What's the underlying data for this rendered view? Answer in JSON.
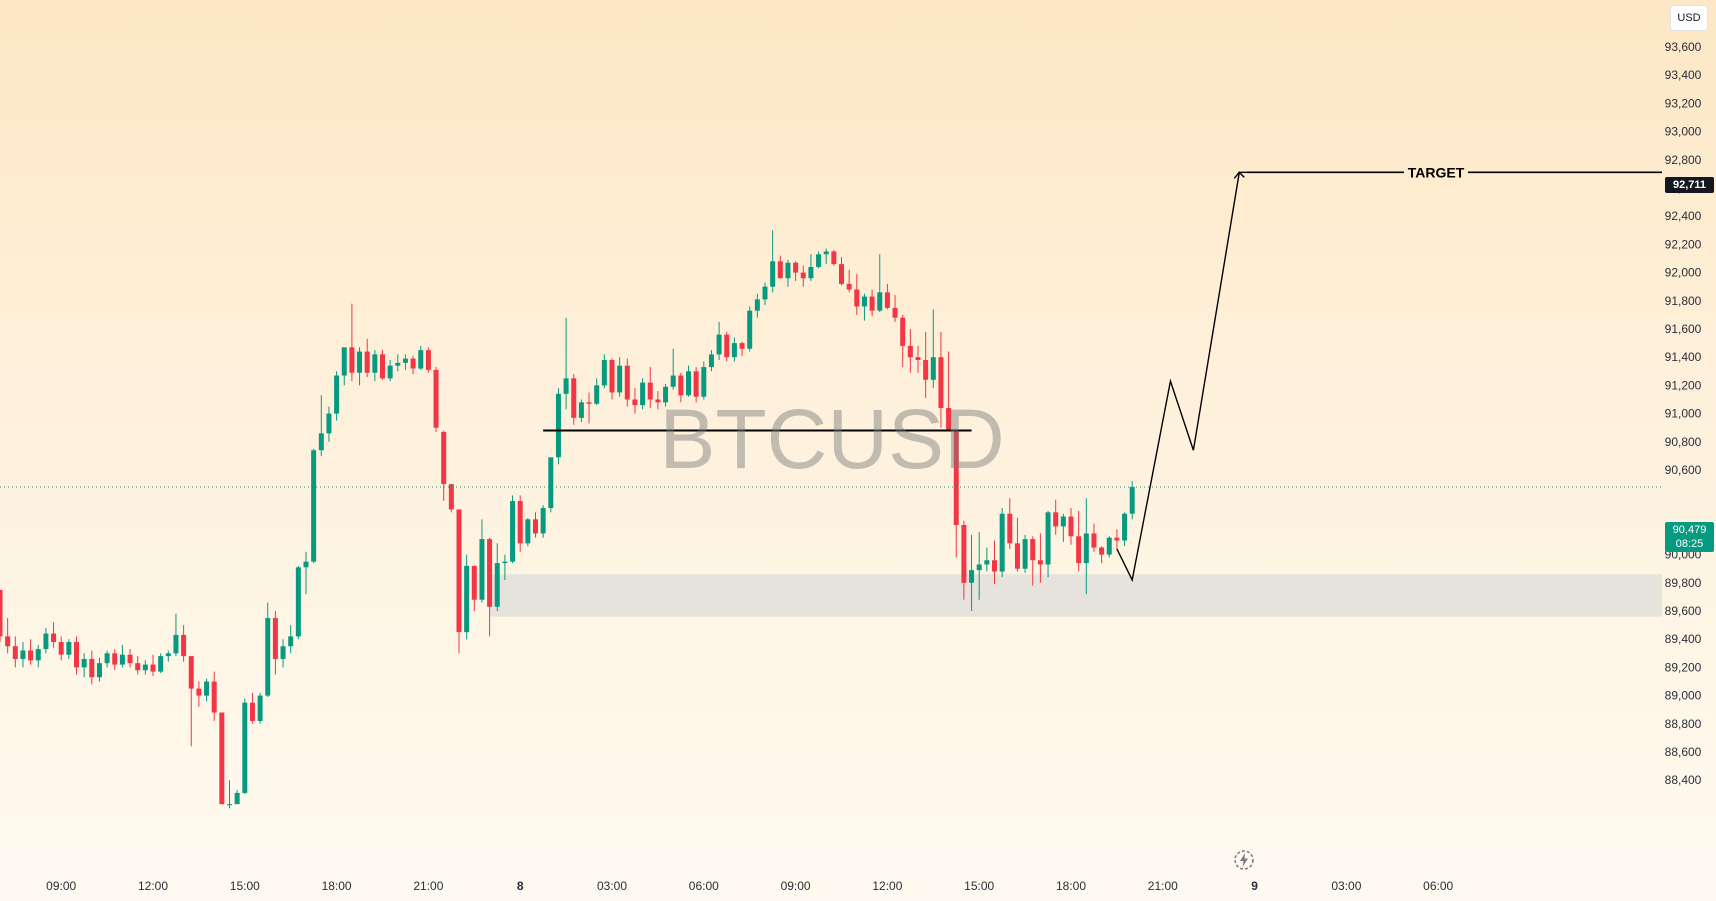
{
  "currency_label": "USD",
  "watermark": "BTCUSD",
  "target_label": "TARGET",
  "target_price_tag": "92,711",
  "current_price_tag": {
    "price": "90,479",
    "countdown": "08:25"
  },
  "icons": {
    "replay": "replay-lightning-icon"
  },
  "colors": {
    "up": "#089981",
    "down": "#f23645",
    "zone": "#e3e0da",
    "target_line": "#000000"
  },
  "chart_data": {
    "type": "candlestick",
    "symbol": "BTCUSD",
    "ylim": [
      88300,
      93700
    ],
    "y_ticks": [
      {
        "value": 93600,
        "label": "93,600"
      },
      {
        "value": 93400,
        "label": "93,400"
      },
      {
        "value": 93200,
        "label": "93,200"
      },
      {
        "value": 93000,
        "label": "93,000"
      },
      {
        "value": 92800,
        "label": "92,800"
      },
      {
        "value": 92600,
        "label": "92,600"
      },
      {
        "value": 92400,
        "label": "92,400"
      },
      {
        "value": 92200,
        "label": "92,200"
      },
      {
        "value": 92000,
        "label": "92,000"
      },
      {
        "value": 91800,
        "label": "91,800"
      },
      {
        "value": 91600,
        "label": "91,600"
      },
      {
        "value": 91400,
        "label": "91,400"
      },
      {
        "value": 91200,
        "label": "91,200"
      },
      {
        "value": 91000,
        "label": "91,000"
      },
      {
        "value": 90800,
        "label": "90,800"
      },
      {
        "value": 90600,
        "label": "90,600"
      },
      {
        "value": 90200,
        "label": "90,200"
      },
      {
        "value": 90000,
        "label": "90,000"
      },
      {
        "value": 89800,
        "label": "89,800"
      },
      {
        "value": 89600,
        "label": "89,600"
      },
      {
        "value": 89400,
        "label": "89,400"
      },
      {
        "value": 89200,
        "label": "89,200"
      },
      {
        "value": 89000,
        "label": "89,000"
      },
      {
        "value": 88800,
        "label": "88,800"
      },
      {
        "value": 88600,
        "label": "88,600"
      },
      {
        "value": 88400,
        "label": "88,400"
      }
    ],
    "x_ticks": [
      {
        "index": 8,
        "label": "09:00",
        "bold": false
      },
      {
        "index": 20,
        "label": "12:00",
        "bold": false
      },
      {
        "index": 32,
        "label": "15:00",
        "bold": false
      },
      {
        "index": 44,
        "label": "18:00",
        "bold": false
      },
      {
        "index": 56,
        "label": "21:00",
        "bold": false
      },
      {
        "index": 68,
        "label": "8",
        "bold": true
      },
      {
        "index": 80,
        "label": "03:00",
        "bold": false
      },
      {
        "index": 92,
        "label": "06:00",
        "bold": false
      },
      {
        "index": 104,
        "label": "09:00",
        "bold": false
      },
      {
        "index": 116,
        "label": "12:00",
        "bold": false
      },
      {
        "index": 128,
        "label": "15:00",
        "bold": false
      },
      {
        "index": 140,
        "label": "18:00",
        "bold": false
      },
      {
        "index": 152,
        "label": "21:00",
        "bold": false
      },
      {
        "index": 164,
        "label": "9",
        "bold": true
      },
      {
        "index": 176,
        "label": "03:00",
        "bold": false
      },
      {
        "index": 188,
        "label": "06:00",
        "bold": false
      }
    ],
    "start_index": 0,
    "candles": [
      [
        89750,
        89750,
        89380,
        89420
      ],
      [
        89420,
        89550,
        89300,
        89350
      ],
      [
        89350,
        89420,
        89200,
        89260
      ],
      [
        89260,
        89380,
        89200,
        89320
      ],
      [
        89320,
        89400,
        89220,
        89250
      ],
      [
        89250,
        89360,
        89200,
        89330
      ],
      [
        89330,
        89480,
        89300,
        89440
      ],
      [
        89440,
        89520,
        89340,
        89380
      ],
      [
        89380,
        89420,
        89250,
        89290
      ],
      [
        89290,
        89400,
        89260,
        89380
      ],
      [
        89380,
        89420,
        89150,
        89200
      ],
      [
        89200,
        89300,
        89130,
        89260
      ],
      [
        89260,
        89320,
        89080,
        89130
      ],
      [
        89130,
        89270,
        89100,
        89230
      ],
      [
        89230,
        89320,
        89200,
        89300
      ],
      [
        89300,
        89330,
        89180,
        89220
      ],
      [
        89220,
        89360,
        89200,
        89290
      ],
      [
        89290,
        89330,
        89200,
        89230
      ],
      [
        89230,
        89280,
        89150,
        89180
      ],
      [
        89180,
        89250,
        89150,
        89220
      ],
      [
        89220,
        89290,
        89140,
        89170
      ],
      [
        89170,
        89300,
        89160,
        89280
      ],
      [
        89280,
        89320,
        89240,
        89300
      ],
      [
        89300,
        89580,
        89280,
        89430
      ],
      [
        89430,
        89500,
        89240,
        89280
      ],
      [
        89280,
        89280,
        88640,
        89050
      ],
      [
        89050,
        89100,
        88920,
        89000
      ],
      [
        89000,
        89120,
        88960,
        89100
      ],
      [
        89100,
        89170,
        88820,
        88880
      ],
      [
        88880,
        88880,
        88230,
        88230
      ],
      [
        88230,
        88400,
        88200,
        88230
      ],
      [
        88230,
        88330,
        88230,
        88310
      ],
      [
        88310,
        88980,
        88300,
        88950
      ],
      [
        88950,
        89020,
        88800,
        88820
      ],
      [
        88820,
        89020,
        88800,
        89000
      ],
      [
        89000,
        89660,
        88990,
        89550
      ],
      [
        89550,
        89600,
        89150,
        89260
      ],
      [
        89260,
        89400,
        89200,
        89350
      ],
      [
        89350,
        89500,
        89300,
        89420
      ],
      [
        89420,
        89920,
        89400,
        89910
      ],
      [
        89910,
        90020,
        89720,
        89950
      ],
      [
        89950,
        90750,
        89940,
        90740
      ],
      [
        90740,
        91130,
        90700,
        90860
      ],
      [
        90860,
        91050,
        90800,
        91000
      ],
      [
        91000,
        91300,
        90950,
        91270
      ],
      [
        91270,
        91460,
        91200,
        91470
      ],
      [
        91470,
        91780,
        91230,
        91290
      ],
      [
        91290,
        91470,
        91200,
        91440
      ],
      [
        91440,
        91530,
        91260,
        91290
      ],
      [
        91290,
        91450,
        91230,
        91420
      ],
      [
        91420,
        91450,
        91240,
        91250
      ],
      [
        91250,
        91380,
        91230,
        91340
      ],
      [
        91340,
        91420,
        91300,
        91360
      ],
      [
        91360,
        91420,
        91310,
        91390
      ],
      [
        91390,
        91410,
        91280,
        91320
      ],
      [
        91320,
        91480,
        91310,
        91450
      ],
      [
        91450,
        91470,
        91290,
        91310
      ],
      [
        91310,
        91330,
        90870,
        90900
      ],
      [
        90870,
        90880,
        90380,
        90500
      ],
      [
        90500,
        90500,
        90300,
        90320
      ],
      [
        90320,
        90320,
        89300,
        89450
      ],
      [
        89450,
        90000,
        89400,
        89920
      ],
      [
        89920,
        89920,
        89600,
        89680
      ],
      [
        89680,
        90250,
        89660,
        90110
      ],
      [
        90110,
        90120,
        89420,
        89630
      ],
      [
        89630,
        90080,
        89600,
        89940
      ],
      [
        89940,
        90000,
        89820,
        89950
      ],
      [
        89950,
        90420,
        89940,
        90380
      ],
      [
        90380,
        90420,
        90020,
        90080
      ],
      [
        90080,
        90260,
        90060,
        90250
      ],
      [
        90250,
        90300,
        90120,
        90150
      ],
      [
        90150,
        90350,
        90120,
        90330
      ],
      [
        90330,
        90680,
        90300,
        90690
      ],
      [
        90690,
        91180,
        90640,
        91140
      ],
      [
        91140,
        91680,
        91030,
        91250
      ],
      [
        91250,
        91280,
        90920,
        90970
      ],
      [
        90970,
        91100,
        90940,
        91080
      ],
      [
        91080,
        91150,
        90930,
        91070
      ],
      [
        91070,
        91250,
        91060,
        91200
      ],
      [
        91200,
        91420,
        91180,
        91380
      ],
      [
        91380,
        91390,
        91100,
        91150
      ],
      [
        91150,
        91400,
        91120,
        91340
      ],
      [
        91340,
        91390,
        91050,
        91100
      ],
      [
        91100,
        91180,
        91000,
        91060
      ],
      [
        91060,
        91250,
        91030,
        91220
      ],
      [
        91220,
        91330,
        91040,
        91100
      ],
      [
        91100,
        91160,
        91030,
        91080
      ],
      [
        91080,
        91210,
        91050,
        91190
      ],
      [
        91190,
        91460,
        91170,
        91270
      ],
      [
        91270,
        91290,
        91080,
        91130
      ],
      [
        91130,
        91340,
        91120,
        91300
      ],
      [
        91300,
        91330,
        91080,
        91120
      ],
      [
        91120,
        91370,
        91100,
        91330
      ],
      [
        91330,
        91450,
        91300,
        91420
      ],
      [
        91420,
        91650,
        91380,
        91560
      ],
      [
        91560,
        91580,
        91370,
        91400
      ],
      [
        91400,
        91540,
        91370,
        91500
      ],
      [
        91500,
        91510,
        91410,
        91460
      ],
      [
        91460,
        91760,
        91440,
        91730
      ],
      [
        91730,
        91850,
        91680,
        91810
      ],
      [
        91810,
        91930,
        91770,
        91900
      ],
      [
        91900,
        92300,
        91860,
        92080
      ],
      [
        92080,
        92120,
        91960,
        91960
      ],
      [
        91960,
        92090,
        91900,
        92070
      ],
      [
        92070,
        92080,
        91940,
        92000
      ],
      [
        92000,
        92050,
        91900,
        91960
      ],
      [
        91960,
        92130,
        91940,
        92040
      ],
      [
        92040,
        92150,
        92030,
        92130
      ],
      [
        92130,
        92170,
        92060,
        92150
      ],
      [
        92150,
        92160,
        92050,
        92060
      ],
      [
        92060,
        92110,
        91910,
        91920
      ],
      [
        91920,
        92020,
        91860,
        91880
      ],
      [
        91880,
        91990,
        91700,
        91760
      ],
      [
        91760,
        91850,
        91660,
        91830
      ],
      [
        91830,
        91880,
        91690,
        91730
      ],
      [
        91730,
        92130,
        91720,
        91860
      ],
      [
        91860,
        91920,
        91740,
        91750
      ],
      [
        91750,
        91840,
        91650,
        91680
      ],
      [
        91680,
        91700,
        91330,
        91480
      ],
      [
        91480,
        91600,
        91290,
        91400
      ],
      [
        91400,
        91480,
        91290,
        91380
      ],
      [
        91380,
        91580,
        91110,
        91240
      ],
      [
        91240,
        91740,
        91180,
        91400
      ],
      [
        91400,
        91580,
        90900,
        91040
      ],
      [
        91040,
        91440,
        90880,
        90880
      ],
      [
        90880,
        90880,
        89980,
        90210
      ],
      [
        90210,
        90240,
        89680,
        89800
      ],
      [
        89800,
        90140,
        89600,
        89890
      ],
      [
        89890,
        90160,
        89680,
        89930
      ],
      [
        89930,
        90050,
        89880,
        89960
      ],
      [
        89960,
        90100,
        89790,
        89880
      ],
      [
        89880,
        90330,
        89840,
        90290
      ],
      [
        90290,
        90400,
        90040,
        90080
      ],
      [
        90080,
        90260,
        89880,
        89900
      ],
      [
        89900,
        90140,
        89870,
        90110
      ],
      [
        90110,
        90130,
        89780,
        89960
      ],
      [
        89960,
        90150,
        89800,
        89930
      ],
      [
        89930,
        90310,
        89840,
        90300
      ],
      [
        90300,
        90390,
        90140,
        90200
      ],
      [
        90200,
        90290,
        90090,
        90270
      ],
      [
        90270,
        90330,
        90070,
        90130
      ],
      [
        90130,
        90310,
        89880,
        89940
      ],
      [
        89940,
        90400,
        89720,
        90150
      ],
      [
        90150,
        90220,
        90020,
        90050
      ],
      [
        90050,
        90060,
        89940,
        90000
      ],
      [
        90000,
        90130,
        89980,
        90120
      ],
      [
        90120,
        90180,
        90040,
        90100
      ],
      [
        90100,
        90300,
        90060,
        90290
      ],
      [
        90290,
        90520,
        90250,
        90480
      ]
    ],
    "resistance_line": {
      "from_index": 71,
      "to_index": 127,
      "value": 90880
    },
    "demand_zone": {
      "from_index": 64,
      "top": 89860,
      "bottom": 89560
    },
    "projection_path": [
      {
        "index": 146,
        "price": 90040
      },
      {
        "index": 148,
        "price": 89820
      },
      {
        "index": 153,
        "price": 91230
      },
      {
        "index": 156,
        "price": 90740
      },
      {
        "index": 162,
        "price": 92711
      },
      {
        "index": 163,
        "price": 92711
      }
    ],
    "target_level": {
      "value": 92711,
      "from_index": 163
    },
    "current_price": 90479
  }
}
